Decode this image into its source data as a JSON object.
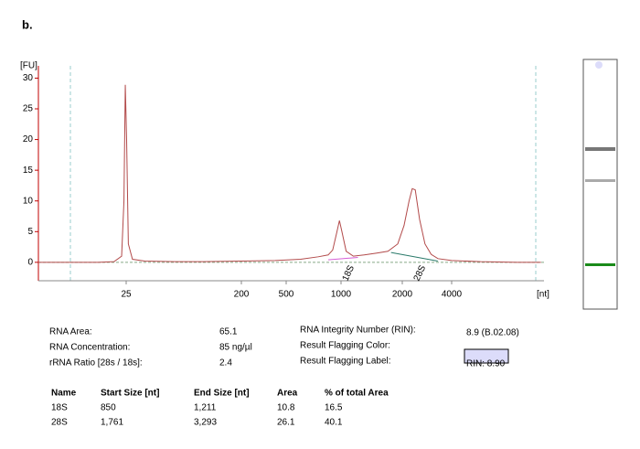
{
  "label": "b.",
  "chart_data": {
    "type": "line",
    "y_label": "[FU]",
    "x_label": "[nt]",
    "xlim": [
      5,
      14600
    ],
    "ylim": [
      -3,
      32
    ],
    "xticks": [
      25,
      200,
      500,
      1000,
      2000,
      4000
    ],
    "yticks": [
      0,
      5,
      10,
      15,
      20,
      25,
      30
    ],
    "axis_color": "#c00000",
    "series": [
      {
        "color": "#b24a4a",
        "x": [
          5,
          9,
          15,
          20,
          23,
          24,
          24.6,
          25.2,
          26,
          28,
          35,
          60,
          100,
          200,
          400,
          600,
          750,
          850,
          900,
          950,
          980,
          1010,
          1060,
          1150,
          1300,
          1500,
          1700,
          1900,
          2050,
          2200,
          2300,
          2400,
          2550,
          2750,
          3000,
          3300,
          4000,
          6000,
          10000,
          14000
        ],
        "values": [
          0,
          0,
          0,
          0.1,
          1,
          10,
          28.9,
          20,
          3,
          0.5,
          0.2,
          0.1,
          0.1,
          0.2,
          0.3,
          0.5,
          0.9,
          1.2,
          2,
          5,
          6.8,
          5,
          1.8,
          1,
          1.2,
          1.5,
          1.8,
          3,
          6,
          10,
          12,
          11.8,
          7,
          3,
          1.3,
          0.6,
          0.3,
          0.1,
          0,
          0
        ]
      }
    ],
    "baselines": [
      {
        "label": "18S",
        "color": "#d65ed6",
        "x": [
          850,
          1211
        ],
        "values": [
          0.4,
          0.8
        ]
      },
      {
        "label": "28S",
        "color": "#2a7a6a",
        "x": [
          1761,
          3293
        ],
        "values": [
          1.6,
          0.2
        ]
      }
    ]
  },
  "summary": {
    "left": [
      {
        "label": "RNA Area:",
        "value": "65.1"
      },
      {
        "label": "RNA Concentration:",
        "value": "85 ng/µl"
      },
      {
        "label": "rRNA Ratio [28s / 18s]:",
        "value": "2.4"
      }
    ],
    "right": [
      {
        "label": "RNA Integrity Number (RIN):",
        "value": "8.9  (B.02.08)"
      },
      {
        "label": "Result Flagging Color:",
        "swatch": "#dcdcfa"
      },
      {
        "label": "Result Flagging Label:",
        "value": "RIN: 8.90"
      }
    ]
  },
  "table": {
    "header": [
      "Name",
      "Start Size [nt]",
      "End Size [nt]",
      "Area",
      "% of total Area"
    ],
    "rows": [
      [
        "18S",
        "850",
        "1,211",
        "10.8",
        "16.5"
      ],
      [
        "28S",
        "1,761",
        "3,293",
        "26.1",
        "40.1"
      ]
    ]
  }
}
